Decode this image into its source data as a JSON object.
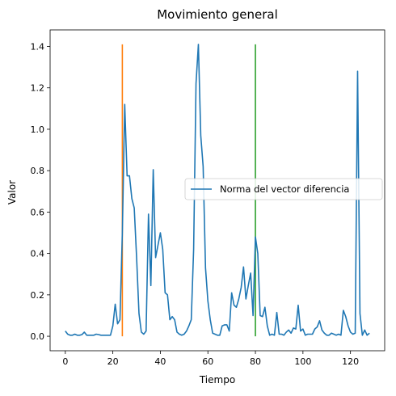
{
  "chart_data": {
    "type": "line",
    "title": "Movimiento general",
    "xlabel": "Tiempo",
    "ylabel": "Valor",
    "xlim": [
      -6.4,
      134.4
    ],
    "ylim": [
      -0.07,
      1.48
    ],
    "xticks": [
      0,
      20,
      40,
      60,
      80,
      100,
      120
    ],
    "xtick_labels": [
      "0",
      "20",
      "40",
      "60",
      "80",
      "100",
      "120"
    ],
    "yticks": [
      0.0,
      0.2,
      0.4,
      0.6,
      0.8,
      1.0,
      1.2,
      1.4
    ],
    "ytick_labels": [
      "0.0",
      "0.2",
      "0.4",
      "0.6",
      "0.8",
      "1.0",
      "1.2",
      "1.4"
    ],
    "grid": false,
    "legend_position": "center-right",
    "series": [
      {
        "name": "Norma del vector diferencia",
        "color": "#1f77b4",
        "x": [
          0,
          1,
          2,
          3,
          4,
          5,
          6,
          7,
          8,
          9,
          10,
          11,
          12,
          13,
          14,
          15,
          16,
          17,
          18,
          19,
          20,
          21,
          22,
          23,
          24,
          25,
          26,
          27,
          28,
          29,
          30,
          31,
          32,
          33,
          34,
          35,
          36,
          37,
          38,
          39,
          40,
          41,
          42,
          43,
          44,
          45,
          46,
          47,
          48,
          49,
          50,
          51,
          52,
          53,
          54,
          55,
          56,
          57,
          58,
          59,
          60,
          61,
          62,
          63,
          64,
          65,
          66,
          67,
          68,
          69,
          70,
          71,
          72,
          73,
          74,
          75,
          76,
          77,
          78,
          79,
          80,
          81,
          82,
          83,
          84,
          85,
          86,
          87,
          88,
          89,
          90,
          91,
          92,
          93,
          94,
          95,
          96,
          97,
          98,
          99,
          100,
          101,
          102,
          103,
          104,
          105,
          106,
          107,
          108,
          109,
          110,
          111,
          112,
          113,
          114,
          115,
          116,
          117,
          118,
          119,
          120,
          121,
          122,
          123,
          124,
          125,
          126,
          127,
          128
        ],
        "values": [
          0.025,
          0.01,
          0.005,
          0.005,
          0.01,
          0.005,
          0.005,
          0.008,
          0.02,
          0.005,
          0.005,
          0.005,
          0.005,
          0.01,
          0.008,
          0.005,
          0.005,
          0.005,
          0.005,
          0.005,
          0.05,
          0.155,
          0.06,
          0.08,
          0.5,
          1.12,
          0.775,
          0.775,
          0.665,
          0.62,
          0.38,
          0.11,
          0.02,
          0.01,
          0.025,
          0.59,
          0.245,
          0.805,
          0.38,
          0.44,
          0.5,
          0.42,
          0.21,
          0.2,
          0.08,
          0.095,
          0.08,
          0.02,
          0.01,
          0.005,
          0.01,
          0.025,
          0.05,
          0.08,
          0.42,
          1.22,
          1.41,
          0.97,
          0.82,
          0.33,
          0.17,
          0.08,
          0.015,
          0.01,
          0.005,
          0.005,
          0.05,
          0.055,
          0.055,
          0.025,
          0.21,
          0.15,
          0.14,
          0.18,
          0.235,
          0.335,
          0.18,
          0.245,
          0.305,
          0.1,
          0.48,
          0.4,
          0.1,
          0.095,
          0.14,
          0.05,
          0.005,
          0.01,
          0.005,
          0.115,
          0.01,
          0.01,
          0.005,
          0.02,
          0.03,
          0.015,
          0.04,
          0.035,
          0.15,
          0.025,
          0.035,
          0.005,
          0.01,
          0.01,
          0.01,
          0.035,
          0.045,
          0.075,
          0.03,
          0.015,
          0.005,
          0.005,
          0.015,
          0.01,
          0.005,
          0.01,
          0.005,
          0.125,
          0.095,
          0.05,
          0.02,
          0.01,
          0.015,
          1.28,
          0.11,
          0.005,
          0.03,
          0.005,
          0.015
        ]
      }
    ],
    "vertical_lines": [
      {
        "x": 24,
        "ymin": 0.0,
        "ymax": 1.41,
        "color": "#ff7f0e"
      },
      {
        "x": 80,
        "ymin": 0.0,
        "ymax": 1.41,
        "color": "#2ca02c"
      }
    ]
  }
}
